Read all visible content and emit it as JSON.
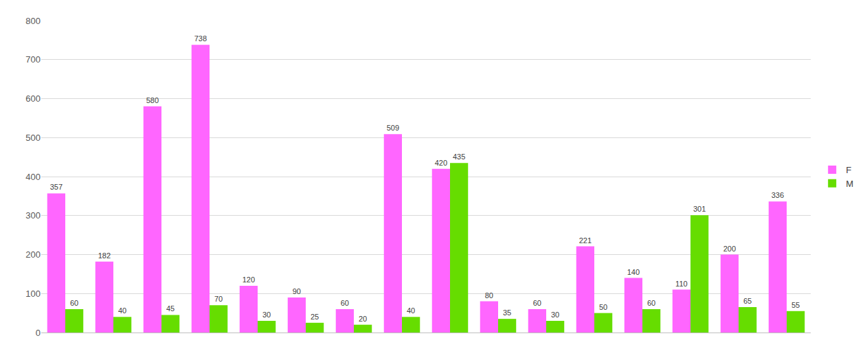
{
  "chart_data": {
    "type": "bar",
    "categories": [
      null,
      null,
      null,
      null,
      null,
      null,
      null,
      null,
      null,
      null,
      null,
      null,
      null,
      null,
      null,
      null
    ],
    "series": [
      {
        "name": "F",
        "color": "#ff66ff",
        "values": [
          357,
          182,
          580,
          738,
          120,
          90,
          60,
          509,
          420,
          80,
          60,
          221,
          140,
          110,
          200,
          336
        ]
      },
      {
        "name": "M",
        "color": "#66dd00",
        "values": [
          60,
          40,
          45,
          70,
          30,
          25,
          20,
          40,
          435,
          35,
          30,
          50,
          60,
          301,
          65,
          55
        ]
      }
    ],
    "ylim": [
      0,
      800
    ],
    "yticks": [
      0,
      100,
      200,
      300,
      400,
      500,
      600,
      700,
      800
    ],
    "grid": true,
    "legend": "right",
    "data_labels": true,
    "tick_labels": "y"
  }
}
